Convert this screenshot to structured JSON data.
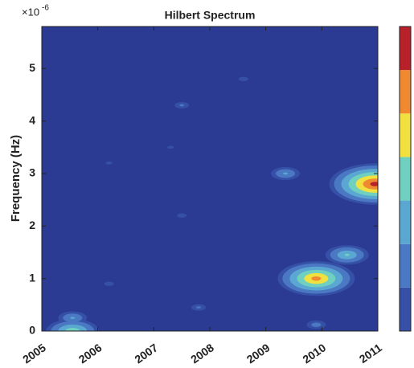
{
  "chart_data": {
    "type": "contour",
    "title": "Hilbert Spectrum",
    "ylabel": "Frequency (Hz)",
    "y_exponent": {
      "base": "×10",
      "power": "-6"
    },
    "xlim": [
      2005,
      2011
    ],
    "xticks": [
      2005,
      2006,
      2007,
      2008,
      2009,
      2010,
      2011
    ],
    "ylim": [
      0,
      5.8
    ],
    "yticks": [
      0,
      1,
      2,
      3,
      4,
      5
    ],
    "background": "#2b3a92",
    "levels": [
      0.05,
      0.15,
      0.3,
      0.45,
      0.6,
      0.75,
      0.9
    ],
    "level_colors": [
      "#3550a6",
      "#4a78c2",
      "#5aa7d2",
      "#6fd0c0",
      "#f0e040",
      "#f08a30",
      "#b8202a"
    ],
    "peaks": {
      "x": [
        2010.95,
        2009.9,
        2010.45,
        2009.35,
        2005.55,
        2005.55,
        2006.2,
        2007.5,
        2007.5,
        2008.6,
        2006.2,
        2007.8,
        2009.9,
        2007.3
      ],
      "y": [
        2.8,
        1.0,
        1.45,
        3.0,
        0.0,
        0.25,
        0.9,
        4.3,
        2.2,
        4.8,
        3.2,
        0.45,
        0.12,
        3.5
      ],
      "z": [
        1.0,
        0.85,
        0.5,
        0.35,
        0.6,
        0.35,
        0.15,
        0.2,
        0.15,
        0.15,
        0.12,
        0.2,
        0.25,
        0.12
      ]
    }
  }
}
